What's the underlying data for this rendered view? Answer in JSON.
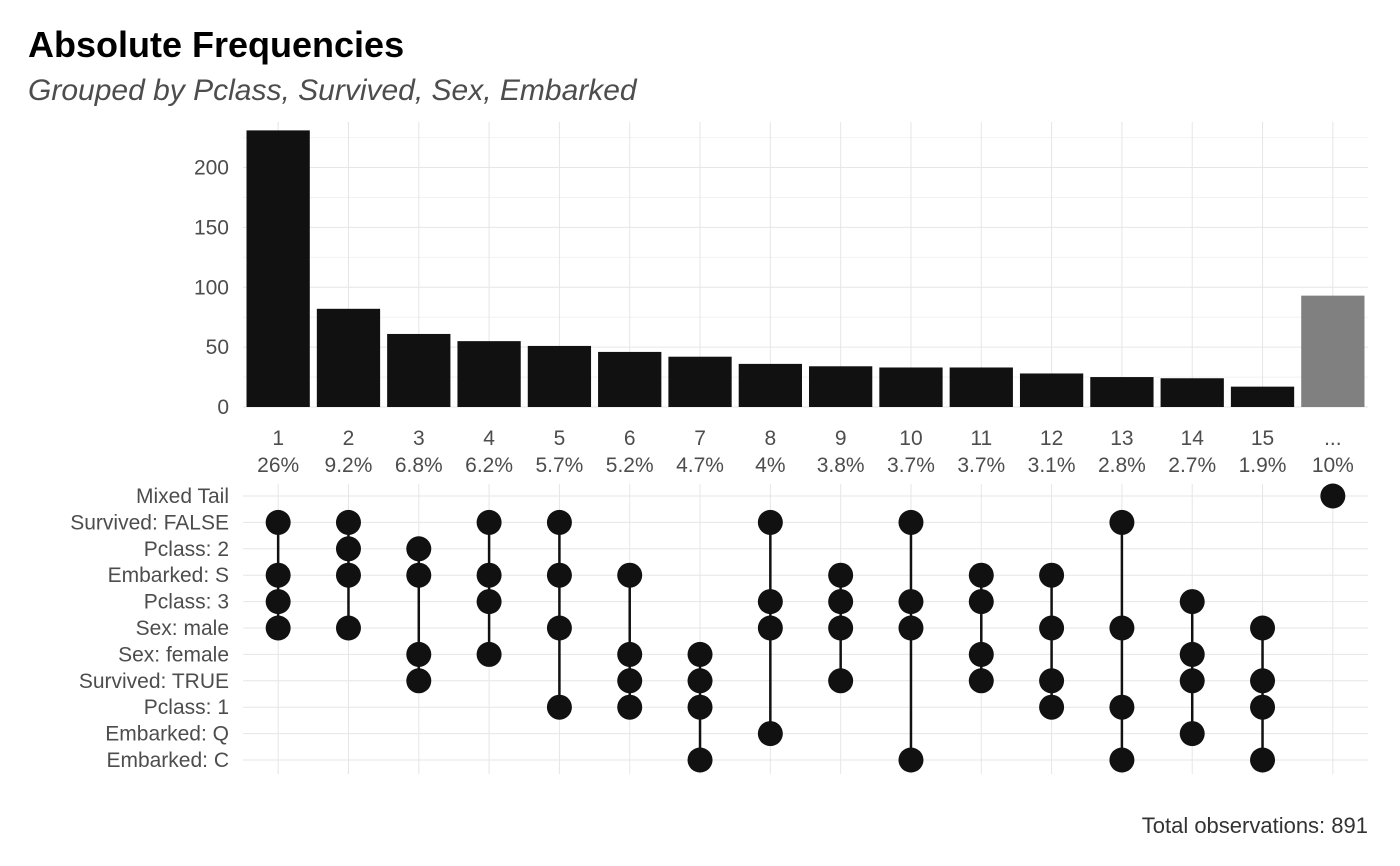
{
  "chart_data": {
    "type": "bar",
    "title": "Absolute Frequencies",
    "subtitle": "Grouped by Pclass, Survived, Sex, Embarked",
    "caption": "Total observations: 891",
    "y_ticks": [
      "0",
      "50",
      "100",
      "150",
      "200"
    ],
    "ylim": [
      0,
      238
    ],
    "grid": true,
    "categories": [
      "1",
      "2",
      "3",
      "4",
      "5",
      "6",
      "7",
      "8",
      "9",
      "10",
      "11",
      "12",
      "13",
      "14",
      "15",
      "..."
    ],
    "percent_labels": [
      "26%",
      "9.2%",
      "6.8%",
      "6.2%",
      "5.7%",
      "5.2%",
      "4.7%",
      "4%",
      "3.8%",
      "3.7%",
      "3.7%",
      "3.1%",
      "2.8%",
      "2.7%",
      "1.9%",
      "10%"
    ],
    "values": [
      231,
      82,
      61,
      55,
      51,
      46,
      42,
      36,
      34,
      33,
      33,
      28,
      25,
      24,
      17,
      93
    ],
    "colors": {
      "bar": "#111111",
      "tail_bar": "#808080",
      "dot": "#111111",
      "grid_major": "#e6e6e6",
      "grid_minor": "#f2f2f2"
    },
    "matrix_rows": [
      "Mixed Tail",
      "Survived: FALSE",
      "Pclass: 2",
      "Embarked: S",
      "Pclass: 3",
      "Sex: male",
      "Sex: female",
      "Survived: TRUE",
      "Pclass: 1",
      "Embarked: Q",
      "Embarked: C"
    ],
    "combinations": [
      [
        "Survived: FALSE",
        "Embarked: S",
        "Pclass: 3",
        "Sex: male"
      ],
      [
        "Survived: FALSE",
        "Pclass: 2",
        "Embarked: S",
        "Sex: male"
      ],
      [
        "Pclass: 2",
        "Embarked: S",
        "Sex: female",
        "Survived: TRUE"
      ],
      [
        "Survived: FALSE",
        "Embarked: S",
        "Pclass: 3",
        "Sex: female"
      ],
      [
        "Survived: FALSE",
        "Embarked: S",
        "Sex: male",
        "Pclass: 1"
      ],
      [
        "Embarked: S",
        "Sex: female",
        "Survived: TRUE",
        "Pclass: 1"
      ],
      [
        "Sex: female",
        "Survived: TRUE",
        "Pclass: 1",
        "Embarked: C"
      ],
      [
        "Survived: FALSE",
        "Pclass: 3",
        "Sex: male",
        "Embarked: Q"
      ],
      [
        "Embarked: S",
        "Pclass: 3",
        "Sex: male",
        "Survived: TRUE"
      ],
      [
        "Survived: FALSE",
        "Pclass: 3",
        "Sex: male",
        "Embarked: C"
      ],
      [
        "Embarked: S",
        "Pclass: 3",
        "Sex: female",
        "Survived: TRUE"
      ],
      [
        "Embarked: S",
        "Sex: male",
        "Survived: TRUE",
        "Pclass: 1"
      ],
      [
        "Survived: FALSE",
        "Sex: male",
        "Pclass: 1",
        "Embarked: C"
      ],
      [
        "Pclass: 3",
        "Sex: female",
        "Survived: TRUE",
        "Embarked: Q"
      ],
      [
        "Sex: male",
        "Survived: TRUE",
        "Pclass: 1",
        "Embarked: C"
      ],
      [
        "Mixed Tail"
      ]
    ]
  }
}
